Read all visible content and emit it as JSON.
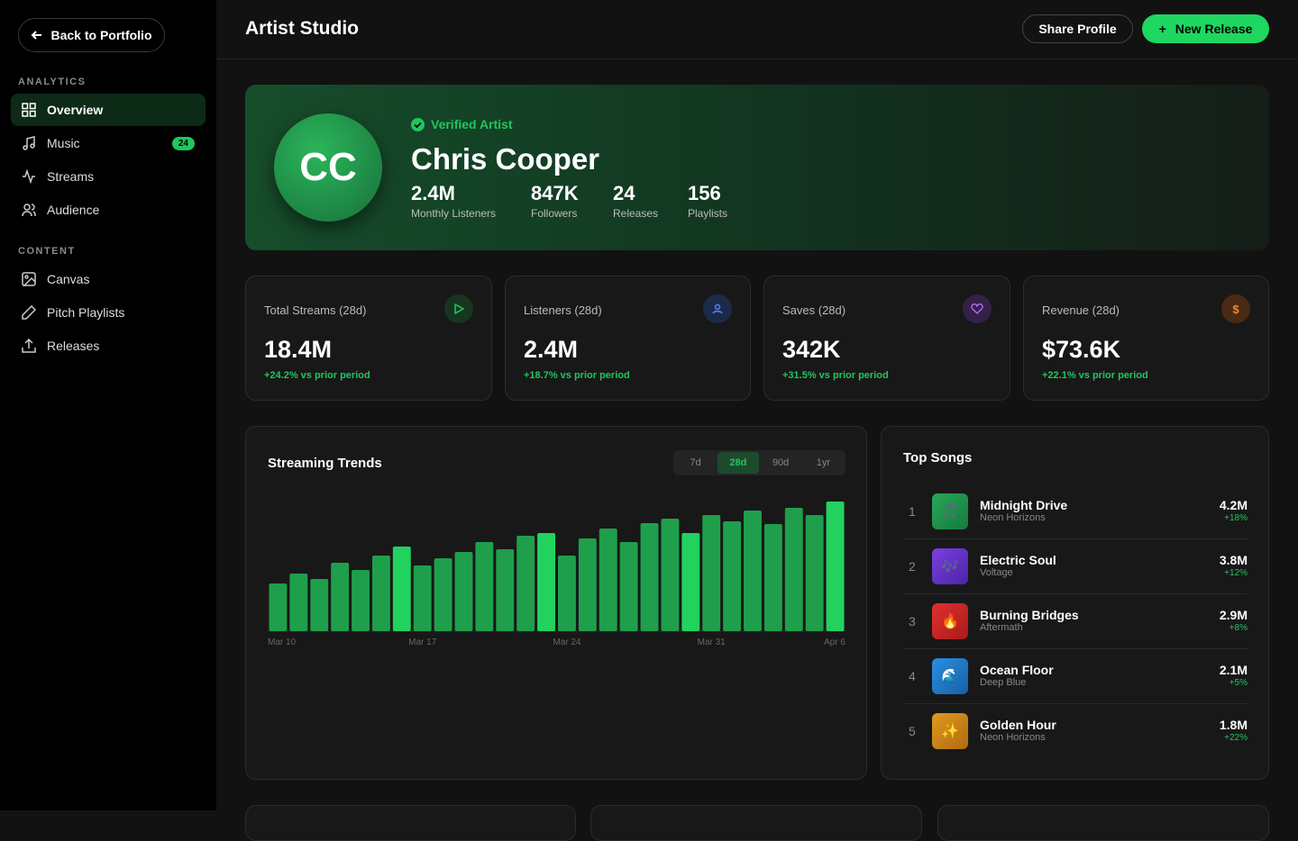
{
  "sidebar": {
    "back_button": "Back to Portfolio",
    "sections": [
      {
        "title": "ANALYTICS",
        "items": [
          {
            "label": "Overview"
          },
          {
            "label": "Music",
            "badge": "24"
          },
          {
            "label": "Streams"
          },
          {
            "label": "Audience"
          }
        ]
      },
      {
        "title": "CONTENT",
        "items": [
          {
            "label": "Canvas"
          },
          {
            "label": "Pitch Playlists"
          },
          {
            "label": "Releases"
          }
        ]
      }
    ]
  },
  "header": {
    "title": "Artist Studio",
    "share_button": "Share Profile",
    "new_button": "New Release"
  },
  "profile": {
    "initials": "CC",
    "verified": "Verified Artist",
    "name": "Chris Cooper",
    "stats": [
      {
        "value": "2.4M",
        "label": "Monthly Listeners"
      },
      {
        "value": "847K",
        "label": "Followers"
      },
      {
        "value": "24",
        "label": "Releases"
      },
      {
        "value": "156",
        "label": "Playlists"
      }
    ]
  },
  "stats": [
    {
      "label": "Total Streams (28d)",
      "value": "18.4M",
      "change": "+24.2% vs prior period"
    },
    {
      "label": "Listeners (28d)",
      "value": "2.4M",
      "change": "+18.7% vs prior period"
    },
    {
      "label": "Saves (28d)",
      "value": "342K",
      "change": "+31.5% vs prior period"
    },
    {
      "label": "Revenue (28d)",
      "value": "$73.6K",
      "change": "+22.1% vs prior period"
    }
  ],
  "chart_data": {
    "type": "bar",
    "title": "Streaming Trends",
    "ranges": [
      "7d",
      "28d",
      "90d",
      "1yr"
    ],
    "categories": [
      "Mar 10",
      null,
      null,
      null,
      null,
      null,
      null,
      "Mar 17",
      null,
      null,
      null,
      null,
      null,
      null,
      "Mar 24",
      null,
      null,
      null,
      null,
      null,
      null,
      "Mar 31",
      null,
      null,
      null,
      null,
      null,
      "Apr 6"
    ],
    "values": [
      53,
      64,
      58,
      76,
      68,
      84,
      94,
      73,
      81,
      88,
      99,
      91,
      106,
      109,
      84,
      103,
      114,
      99,
      120,
      125,
      109,
      129,
      122,
      134,
      119,
      137,
      129,
      144
    ],
    "colors": [
      "#1f9f4b",
      "#1f9f4b",
      "#1f9f4b",
      "#1f9f4b",
      "#1f9f4b",
      "#1f9f4b",
      "#22d25f",
      "#1f9f4b",
      "#1f9f4b",
      "#1f9f4b",
      "#1f9f4b",
      "#1f9f4b",
      "#1f9f4b",
      "#22d25f",
      "#1f9f4b",
      "#1f9f4b",
      "#1f9f4b",
      "#1f9f4b",
      "#1f9f4b",
      "#1f9f4b",
      "#22d25f",
      "#1f9f4b",
      "#1f9f4b",
      "#1f9f4b",
      "#1f9f4b",
      "#1f9f4b",
      "#1f9f4b",
      "#22d25f"
    ],
    "ylim": [
      0,
      150
    ]
  },
  "top_songs": {
    "title": "Top Songs",
    "songs": [
      {
        "rank": 1,
        "icon": "🎵",
        "title": "Midnight Drive",
        "artist": "Neon Horizons",
        "streams": "4.2M",
        "change": "+18%"
      },
      {
        "rank": 2,
        "icon": "🎶",
        "title": "Electric Soul",
        "artist": "Voltage",
        "streams": "3.8M",
        "change": "+12%"
      },
      {
        "rank": 3,
        "icon": "🔥",
        "title": "Burning Bridges",
        "artist": "Aftermath",
        "streams": "2.9M",
        "change": "+8%"
      },
      {
        "rank": 4,
        "icon": "🌊",
        "title": "Ocean Floor",
        "artist": "Deep Blue",
        "streams": "2.1M",
        "change": "+5%"
      },
      {
        "rank": 5,
        "icon": "✨",
        "title": "Golden Hour",
        "artist": "Neon Horizons",
        "streams": "1.8M",
        "change": "+22%"
      }
    ]
  }
}
